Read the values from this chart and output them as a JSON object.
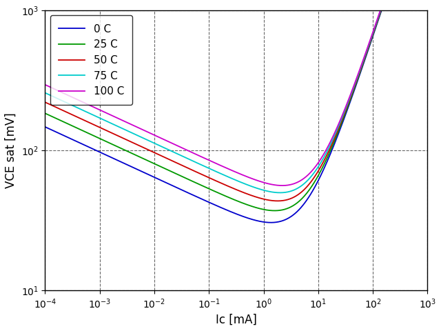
{
  "title": "",
  "xlabel": "Ic [mA]",
  "ylabel": "VCE sat [mV]",
  "xlim_log": [
    -4,
    3
  ],
  "ylim": [
    10,
    1000
  ],
  "grid": true,
  "temperatures": [
    "0 C",
    "25 C",
    "50 C",
    "75 C",
    "100 C"
  ],
  "colors": [
    "#0000cc",
    "#009900",
    "#cc0000",
    "#00cccc",
    "#cc00cc"
  ],
  "temps_C": [
    0,
    25,
    50,
    75,
    100
  ],
  "background": "white",
  "figsize": [
    6.4,
    4.8
  ],
  "dpi": 100
}
